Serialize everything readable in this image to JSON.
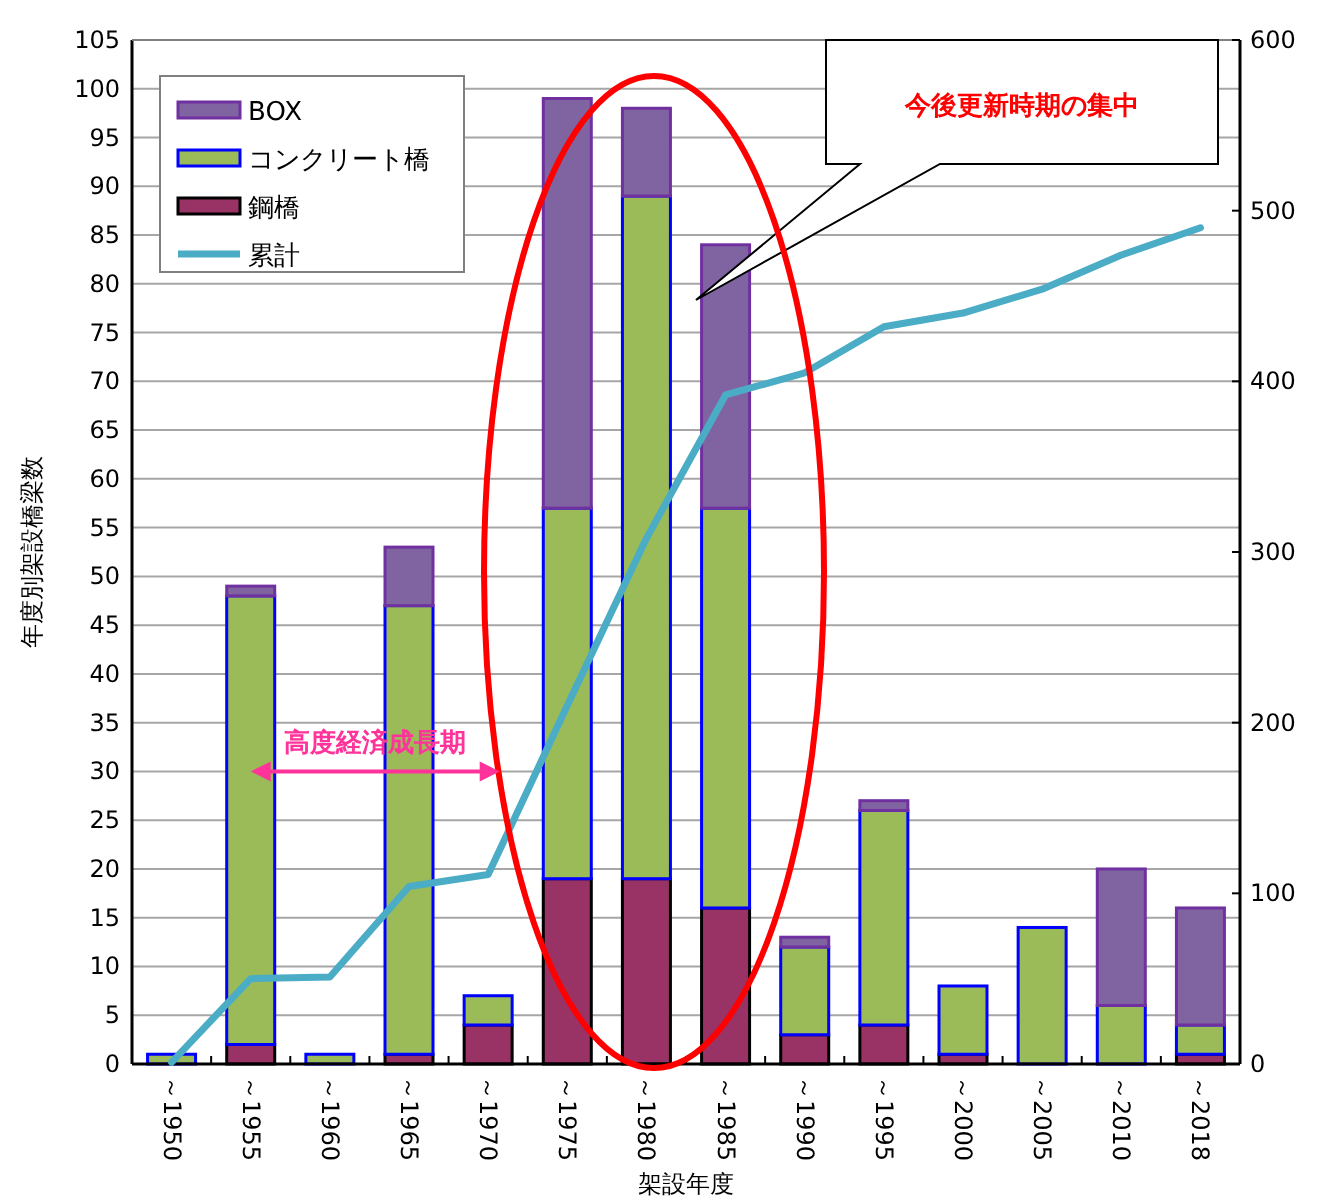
{
  "chart_data": {
    "type": "bar",
    "stacked": true,
    "categories": [
      "～1950",
      "～1955",
      "～1960",
      "～1965",
      "～1970",
      "～1975",
      "～1980",
      "～1985",
      "～1990",
      "～1995",
      "～2000",
      "～2005",
      "～2010",
      "～2018"
    ],
    "series": [
      {
        "name": "鋼橋",
        "color": "#993366",
        "values": [
          0,
          2,
          0,
          1,
          4,
          19,
          19,
          16,
          3,
          4,
          1,
          0,
          0,
          1
        ]
      },
      {
        "name": "コンクリート橋",
        "color": "#9bbb59",
        "values": [
          1,
          46,
          1,
          46,
          3,
          38,
          70,
          41,
          9,
          22,
          7,
          14,
          6,
          3
        ]
      },
      {
        "name": "BOX",
        "color": "#8064a2",
        "values": [
          0,
          1,
          0,
          6,
          0,
          42,
          9,
          27,
          1,
          1,
          0,
          0,
          14,
          12
        ]
      },
      {
        "name": "累計",
        "type": "line",
        "axis": "y2",
        "color": "#4bacc6",
        "values": [
          1,
          50,
          51,
          104,
          111,
          210,
          308,
          392,
          405,
          432,
          440,
          454,
          474,
          490
        ]
      }
    ],
    "xlabel": "架設年度",
    "ylabel": "年度別架設橋梁数",
    "ylim": [
      0,
      105
    ],
    "yticks": [
      0,
      5,
      10,
      15,
      20,
      25,
      30,
      35,
      40,
      45,
      50,
      55,
      60,
      65,
      70,
      75,
      80,
      85,
      90,
      95,
      100,
      105
    ],
    "y2lim": [
      0,
      600
    ],
    "y2ticks": [
      0,
      100,
      200,
      300,
      400,
      500,
      600
    ],
    "grid": "y",
    "legend": "top left",
    "annotations": [
      "今後更新時期の集中",
      "高度経済成長期"
    ]
  }
}
